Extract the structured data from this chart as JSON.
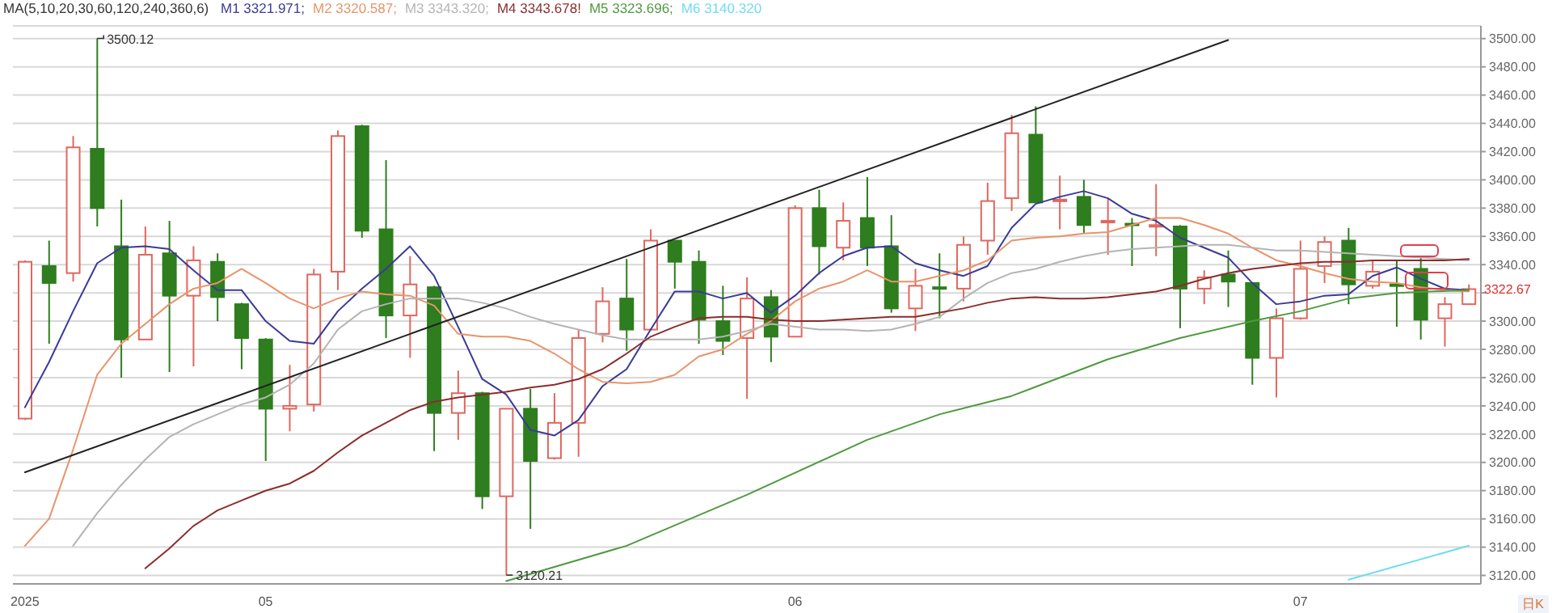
{
  "chart_data": {
    "type": "candlestick",
    "legend_title": "MA(5,10,20,30,60,120,240,360,6)",
    "legend": "top left",
    "grid": "y",
    "categories": [
      "2025",
      null,
      null,
      null,
      null,
      null,
      null,
      null,
      null,
      null,
      "05",
      null,
      null,
      null,
      null,
      null,
      null,
      null,
      null,
      null,
      null,
      null,
      null,
      null,
      null,
      null,
      null,
      null,
      null,
      null,
      null,
      null,
      "06",
      null,
      null,
      null,
      null,
      null,
      null,
      null,
      null,
      null,
      null,
      null,
      null,
      null,
      null,
      null,
      null,
      null,
      null,
      null,
      null,
      "07",
      null,
      null,
      null,
      null,
      null,
      null,
      null
    ],
    "ohlc": [
      [
        3231,
        3343,
        3230,
        3342
      ],
      [
        3339,
        3357,
        3284,
        3327
      ],
      [
        3334,
        3431,
        3328,
        3423
      ],
      [
        3422,
        3500.12,
        3367,
        3380
      ],
      [
        3353,
        3386,
        3260,
        3287
      ],
      [
        3287,
        3367,
        3287,
        3347
      ],
      [
        3348,
        3371,
        3264,
        3318
      ],
      [
        3318,
        3353,
        3268,
        3343
      ],
      [
        3342,
        3348,
        3300,
        3317
      ],
      [
        3312,
        3313,
        3266,
        3288
      ],
      [
        3287,
        3288,
        3201,
        3238
      ],
      [
        3238,
        3269,
        3222,
        3240
      ],
      [
        3241,
        3337,
        3236,
        3333
      ],
      [
        3335,
        3435,
        3322,
        3431
      ],
      [
        3438,
        3439,
        3359,
        3364
      ],
      [
        3365,
        3414,
        3288,
        3304
      ],
      [
        3304,
        3346,
        3274,
        3326
      ],
      [
        3324,
        3325,
        3208,
        3235
      ],
      [
        3235,
        3265,
        3216,
        3249
      ],
      [
        3249,
        3250,
        3167,
        3176
      ],
      [
        3176,
        3238,
        3120.21,
        3238
      ],
      [
        3238,
        3252,
        3153,
        3201
      ],
      [
        3203,
        3249,
        3202,
        3228
      ],
      [
        3228,
        3294,
        3204,
        3288
      ],
      [
        3291,
        3324,
        3285,
        3314
      ],
      [
        3316,
        3344,
        3279,
        3294
      ],
      [
        3294,
        3365,
        3294,
        3357
      ],
      [
        3357,
        3357,
        3323,
        3342
      ],
      [
        3342,
        3350,
        3284,
        3301
      ],
      [
        3300,
        3325,
        3276,
        3286
      ],
      [
        3288,
        3331,
        3245,
        3316
      ],
      [
        3317,
        3322,
        3271,
        3289
      ],
      [
        3289,
        3382,
        3289,
        3380
      ],
      [
        3380,
        3393,
        3333,
        3353
      ],
      [
        3352,
        3384,
        3343,
        3371
      ],
      [
        3373,
        3402,
        3339,
        3352
      ],
      [
        3353,
        3375,
        3306,
        3309
      ],
      [
        3309,
        3337,
        3293,
        3325
      ],
      [
        3324,
        3348,
        3302,
        3323
      ],
      [
        3323,
        3360,
        3314,
        3354
      ],
      [
        3357,
        3398,
        3347,
        3385
      ],
      [
        3387,
        3446,
        3378,
        3433
      ],
      [
        3432,
        3452,
        3384,
        3384
      ],
      [
        3385,
        3403,
        3365,
        3386
      ],
      [
        3388,
        3400,
        3362,
        3368
      ],
      [
        3370,
        3387,
        3347,
        3371
      ],
      [
        3369,
        3373,
        3339,
        3368
      ],
      [
        3367,
        3397,
        3346,
        3368
      ],
      [
        3367,
        3368,
        3295,
        3323
      ],
      [
        3323,
        3336,
        3312,
        3331
      ],
      [
        3333,
        3350,
        3310,
        3328
      ],
      [
        3327,
        3327,
        3255,
        3274
      ],
      [
        3274,
        3309,
        3246,
        3302
      ],
      [
        3302,
        3357,
        3301,
        3337
      ],
      [
        3339,
        3360,
        3327,
        3356
      ],
      [
        3357,
        3366,
        3312,
        3326
      ],
      [
        3325,
        3343,
        3323,
        3335
      ],
      [
        3326,
        3343,
        3296,
        3325
      ],
      [
        3337,
        3345,
        3287,
        3301
      ],
      [
        3302,
        3317,
        3282,
        3312
      ],
      [
        3312,
        3326,
        3312,
        3322.67
      ]
    ],
    "colors": [
      "#e0675e",
      "#2e7d1e",
      "#e0675e",
      "#2e7d1e",
      "#2e7d1e",
      "#e0675e",
      "#2e7d1e",
      "#e0675e",
      "#2e7d1e",
      "#2e7d1e",
      "#2e7d1e",
      "#e0675e",
      "#e0675e",
      "#e0675e",
      "#2e7d1e",
      "#2e7d1e",
      "#e0675e",
      "#2e7d1e",
      "#e0675e",
      "#2e7d1e",
      "#e0675e",
      "#2e7d1e",
      "#e0675e",
      "#e0675e",
      "#e0675e",
      "#2e7d1e",
      "#e0675e",
      "#2e7d1e",
      "#2e7d1e",
      "#2e7d1e",
      "#e0675e",
      "#2e7d1e",
      "#e0675e",
      "#2e7d1e",
      "#e0675e",
      "#2e7d1e",
      "#2e7d1e",
      "#e0675e",
      "#2e7d1e",
      "#e0675e",
      "#e0675e",
      "#e0675e",
      "#2e7d1e",
      "#e0675e",
      "#2e7d1e",
      "#e0675e",
      "#2e7d1e",
      "#e0675e",
      "#2e7d1e",
      "#e0675e",
      "#2e7d1e",
      "#2e7d1e",
      "#e0675e",
      "#e0675e",
      "#e0675e",
      "#2e7d1e",
      "#e0675e",
      "#2e7d1e",
      "#2e7d1e",
      "#e0675e",
      "#e0675e"
    ],
    "series": [
      {
        "type": "line",
        "name": "M1 3321.971;",
        "color": "#3a3a96",
        "values": [
          3239,
          3271,
          3307,
          3341,
          3352,
          3353,
          3351,
          3336,
          3322,
          3322,
          3300,
          3286,
          3284,
          3307,
          3323,
          3337,
          3353,
          3332,
          3296,
          3259,
          3248,
          3223,
          3219,
          3230,
          3254,
          3266,
          3294,
          3321,
          3321,
          3316,
          3320,
          3306,
          3318,
          3334,
          3346,
          3352,
          3353,
          3341,
          3336,
          3332,
          3339,
          3366,
          3383,
          3388,
          3392,
          3387,
          3376,
          3371,
          3359,
          3352,
          3345,
          3327,
          3312,
          3314,
          3318,
          3319,
          3332,
          3338,
          3330,
          3323,
          3322
        ]
      },
      {
        "type": "line",
        "name": "M2 3320.587;",
        "color": "#e8946a",
        "values": [
          3141,
          3160,
          3209,
          3262,
          3284,
          3298,
          3312,
          3323,
          3327,
          3337,
          3327,
          3316,
          3309,
          3316,
          3321,
          3319,
          3318,
          3311,
          3291,
          3289,
          3289,
          3286,
          3277,
          3266,
          3257,
          3256,
          3257,
          3262,
          3275,
          3280,
          3291,
          3300,
          3314,
          3323,
          3328,
          3336,
          3328,
          3328,
          3332,
          3336,
          3343,
          3357,
          3359,
          3360,
          3362,
          3363,
          3368,
          3373,
          3373,
          3368,
          3362,
          3352,
          3343,
          3339,
          3334,
          3330,
          3328,
          3327,
          3324,
          3322,
          3321
        ]
      },
      {
        "type": "line",
        "name": "M3 3343.320;",
        "color": "#b4b4b4",
        "values": [
          null,
          null,
          3141,
          3164,
          3184,
          3202,
          3218,
          3227,
          3234,
          3241,
          3246,
          3255,
          3270,
          3294,
          3307,
          3312,
          3316,
          3316,
          3316,
          3313,
          3309,
          3303,
          3298,
          3294,
          3290,
          3287,
          3287,
          3287,
          3287,
          3289,
          3293,
          3298,
          3296,
          3294,
          3294,
          3293,
          3294,
          3298,
          3303,
          3316,
          3327,
          3334,
          3337,
          3342,
          3346,
          3349,
          3351,
          3352,
          3353,
          3354,
          3354,
          3352,
          3350,
          3350,
          3349,
          3348,
          3347,
          3346,
          3345,
          3344,
          3343
        ]
      },
      {
        "type": "line",
        "name": "M4 3343.678!",
        "color": "#8c2c2c",
        "values": [
          null,
          null,
          null,
          null,
          null,
          3125,
          3139,
          3155,
          3166,
          3173,
          3180,
          3185,
          3194,
          3207,
          3219,
          3228,
          3237,
          3243,
          3246,
          3248,
          3250,
          3253,
          3255,
          3259,
          3266,
          3277,
          3289,
          3296,
          3302,
          3303,
          3303,
          3301,
          3300,
          3300,
          3301,
          3302,
          3303,
          3303,
          3306,
          3309,
          3313,
          3316,
          3317,
          3316,
          3316,
          3317,
          3319,
          3321,
          3325,
          3330,
          3334,
          3337,
          3339,
          3341,
          3342,
          3342,
          3343,
          3343,
          3343,
          3343,
          3344
        ]
      },
      {
        "type": "line",
        "name": "M5 3323.696;",
        "color": "#4f9a3f",
        "values": [
          null,
          null,
          null,
          null,
          null,
          null,
          null,
          null,
          null,
          null,
          null,
          null,
          null,
          null,
          null,
          null,
          null,
          null,
          null,
          null,
          3116,
          null,
          null,
          null,
          null,
          3141,
          null,
          null,
          null,
          null,
          3177,
          null,
          null,
          null,
          null,
          3216,
          null,
          null,
          3234,
          null,
          null,
          3247,
          null,
          null,
          null,
          3273,
          null,
          null,
          3288,
          null,
          null,
          3300,
          null,
          3307,
          null,
          3316,
          null,
          3320,
          null,
          null,
          3322
        ]
      },
      {
        "type": "line",
        "name": "M6 3140.320",
        "color": "#6fdcf0",
        "values": [
          null,
          null,
          null,
          null,
          null,
          null,
          null,
          null,
          null,
          null,
          null,
          null,
          null,
          null,
          null,
          null,
          null,
          null,
          null,
          null,
          null,
          null,
          null,
          null,
          null,
          null,
          null,
          null,
          null,
          null,
          null,
          null,
          null,
          null,
          null,
          null,
          null,
          null,
          null,
          null,
          null,
          null,
          null,
          null,
          null,
          null,
          null,
          null,
          null,
          null,
          null,
          null,
          null,
          null,
          null,
          3117,
          null,
          null,
          null,
          null,
          3141
        ]
      },
      {
        "type": "line",
        "color": "#222222",
        "values": [
          3193,
          null,
          null,
          null,
          null,
          null,
          null,
          null,
          null,
          null,
          null,
          null,
          null,
          null,
          null,
          null,
          null,
          null,
          null,
          null,
          null,
          null,
          null,
          null,
          null,
          null,
          null,
          null,
          null,
          null,
          null,
          null,
          null,
          null,
          null,
          null,
          null,
          null,
          null,
          null,
          null,
          null,
          null,
          null,
          null,
          null,
          null,
          null,
          null,
          null,
          3499,
          null,
          null,
          null,
          null,
          null,
          null,
          null,
          null,
          null,
          null
        ]
      }
    ],
    "ylim": [
      3114,
      3509
    ],
    "yticks": [
      {
        "value": 3120,
        "label": "3120.00"
      },
      {
        "value": 3140,
        "label": "3140.00"
      },
      {
        "value": 3160,
        "label": "3160.00"
      },
      {
        "value": 3180,
        "label": "3180.00"
      },
      {
        "value": 3200,
        "label": "3200.00"
      },
      {
        "value": 3220,
        "label": "3220.00"
      },
      {
        "value": 3240,
        "label": "3240.00"
      },
      {
        "value": 3260,
        "label": "3260.00"
      },
      {
        "value": 3280,
        "label": "3280.00"
      },
      {
        "value": 3300,
        "label": "3300.00"
      },
      {
        "value": 3320,
        "label": null
      },
      {
        "value": 3340,
        "label": "3340.00"
      },
      {
        "value": 3360,
        "label": "3360.00"
      },
      {
        "value": 3380,
        "label": "3380.00"
      },
      {
        "value": 3400,
        "label": "3400.00"
      },
      {
        "value": 3420,
        "label": "3420.00"
      },
      {
        "value": 3440,
        "label": "3440.00"
      },
      {
        "value": 3460,
        "label": "3460.00"
      },
      {
        "value": 3480,
        "label": "3480.00"
      },
      {
        "value": 3500,
        "label": "3500.00"
      }
    ],
    "annotations": [
      "3500.12",
      "3120.21",
      "3322.67",
      "日K"
    ]
  }
}
